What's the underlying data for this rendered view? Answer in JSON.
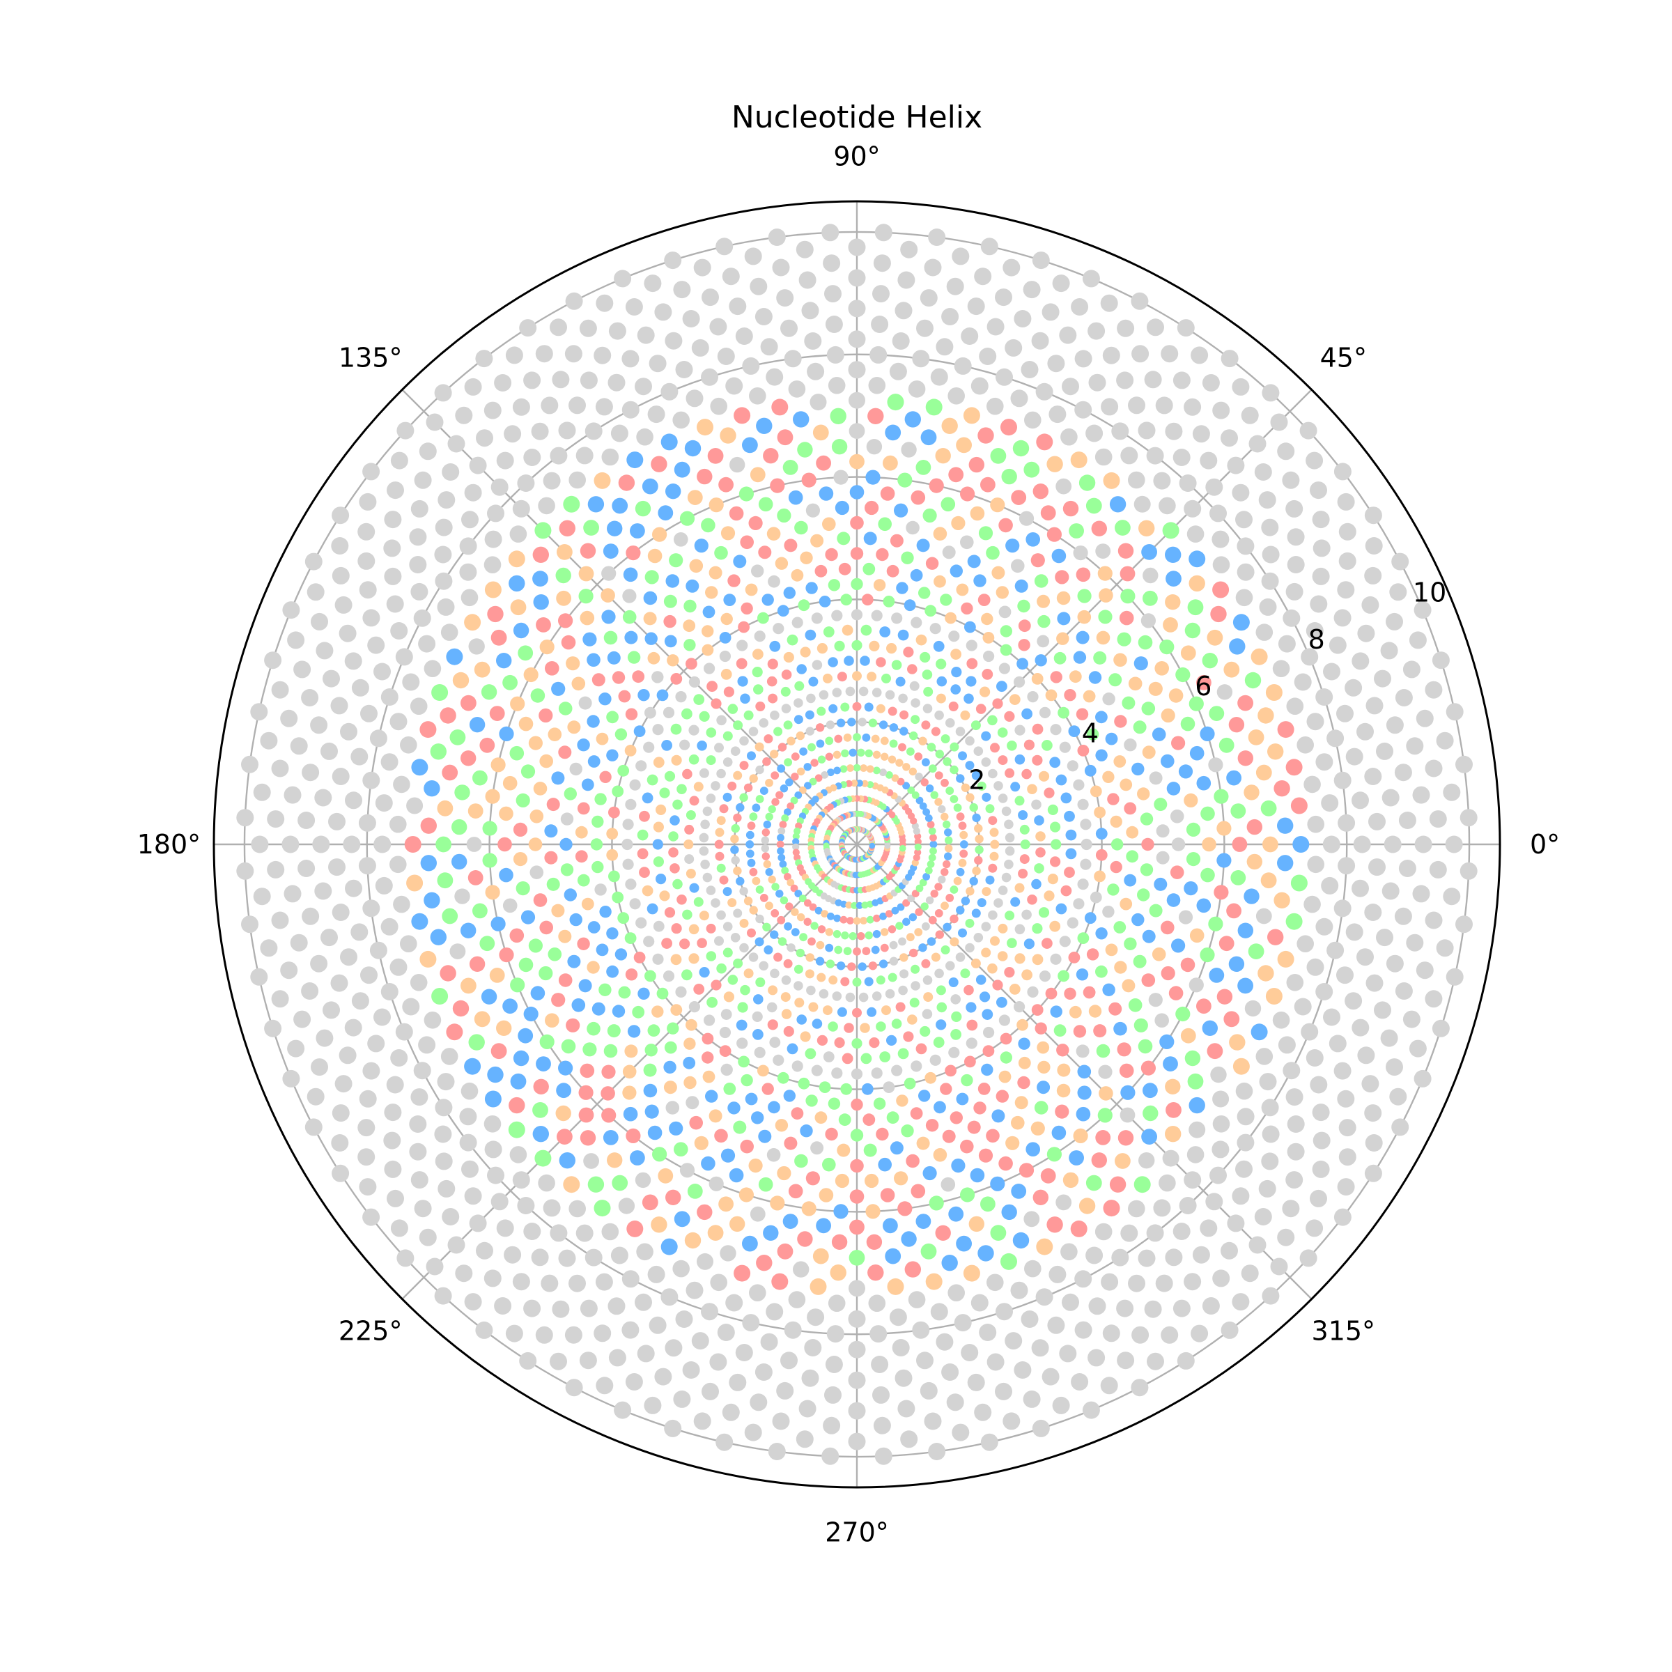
{
  "chart_data": {
    "type": "scatter",
    "projection": "polar",
    "title": "Nucleotide Helix",
    "rlim": [
      0,
      10.5
    ],
    "r_ticks": [
      2,
      4,
      6,
      8,
      10
    ],
    "r_tick_labels": [
      "2",
      "4",
      "6",
      "8",
      "10"
    ],
    "theta_ticks_deg": [
      0,
      45,
      90,
      135,
      180,
      225,
      270,
      315
    ],
    "theta_tick_labels": [
      "0°",
      "45°",
      "90°",
      "135°",
      "180°",
      "225°",
      "270°",
      "315°"
    ],
    "grid": true,
    "points_per_turn": 72,
    "radial_layers": 40,
    "layer_spacing": 0.25,
    "unpaired_color": "#d3d3d3",
    "palette": [
      "#ff9999",
      "#66b3ff",
      "#99ff99",
      "#ffcc99"
    ],
    "series": [
      {
        "color": "#ff9999"
      },
      {
        "color": "#66b3ff"
      },
      {
        "color": "#99ff99"
      },
      {
        "color": "#ffcc99"
      },
      {
        "color": "#d3d3d3"
      }
    ],
    "color_bands": [
      {
        "r_min": 0.0,
        "r_max": 2.4,
        "mix": "mixed"
      },
      {
        "r_min": 2.4,
        "r_max": 2.6,
        "mix": "gray"
      },
      {
        "r_min": 2.6,
        "r_max": 3.6,
        "mix": "mixed"
      },
      {
        "r_min": 3.6,
        "r_max": 3.9,
        "mix": "gray"
      },
      {
        "r_min": 3.9,
        "r_max": 7.4,
        "mix": "mixed"
      },
      {
        "r_min": 7.4,
        "r_max": 10.5,
        "mix": "gray"
      }
    ]
  }
}
